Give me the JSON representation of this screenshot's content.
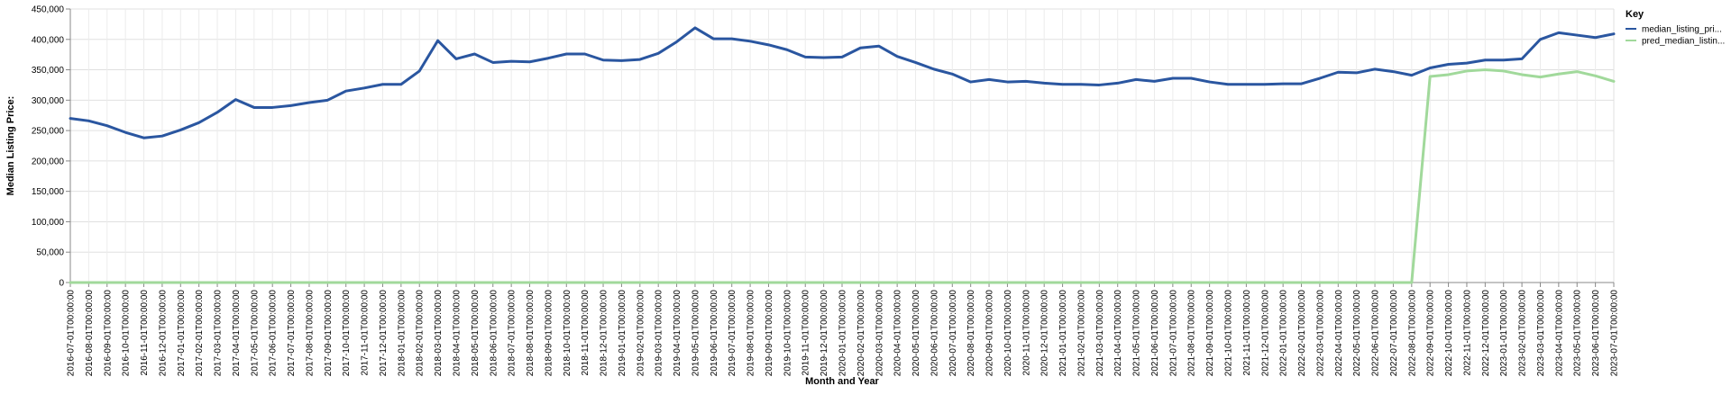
{
  "chart_data": {
    "type": "line",
    "xlabel": "Month and Year",
    "ylabel": "Median Listing Price:",
    "ylim": [
      0,
      450000
    ],
    "yticks": [
      "0",
      "50,000",
      "100,000",
      "150,000",
      "200,000",
      "250,000",
      "300,000",
      "350,000",
      "400,000",
      "450,000"
    ],
    "grid": true,
    "legend": {
      "title": "Key",
      "placement": "top-right"
    },
    "x": [
      "2016-07-01T00:00:00",
      "2016-08-01T00:00:00",
      "2016-09-01T00:00:00",
      "2016-10-01T00:00:00",
      "2016-11-01T00:00:00",
      "2016-12-01T00:00:00",
      "2017-01-01T00:00:00",
      "2017-02-01T00:00:00",
      "2017-03-01T00:00:00",
      "2017-04-01T00:00:00",
      "2017-05-01T00:00:00",
      "2017-06-01T00:00:00",
      "2017-07-01T00:00:00",
      "2017-08-01T00:00:00",
      "2017-09-01T00:00:00",
      "2017-10-01T00:00:00",
      "2017-11-01T00:00:00",
      "2017-12-01T00:00:00",
      "2018-01-01T00:00:00",
      "2018-02-01T00:00:00",
      "2018-03-01T00:00:00",
      "2018-04-01T00:00:00",
      "2018-05-01T00:00:00",
      "2018-06-01T00:00:00",
      "2018-07-01T00:00:00",
      "2018-08-01T00:00:00",
      "2018-09-01T00:00:00",
      "2018-10-01T00:00:00",
      "2018-11-01T00:00:00",
      "2018-12-01T00:00:00",
      "2019-01-01T00:00:00",
      "2019-02-01T00:00:00",
      "2019-03-01T00:00:00",
      "2019-04-01T00:00:00",
      "2019-05-01T00:00:00",
      "2019-06-01T00:00:00",
      "2019-07-01T00:00:00",
      "2019-08-01T00:00:00",
      "2019-09-01T00:00:00",
      "2019-10-01T00:00:00",
      "2019-11-01T00:00:00",
      "2019-12-01T00:00:00",
      "2020-01-01T00:00:00",
      "2020-02-01T00:00:00",
      "2020-03-01T00:00:00",
      "2020-04-01T00:00:00",
      "2020-05-01T00:00:00",
      "2020-06-01T00:00:00",
      "2020-07-01T00:00:00",
      "2020-08-01T00:00:00",
      "2020-09-01T00:00:00",
      "2020-10-01T00:00:00",
      "2020-11-01T00:00:00",
      "2020-12-01T00:00:00",
      "2021-01-01T00:00:00",
      "2021-02-01T00:00:00",
      "2021-03-01T00:00:00",
      "2021-04-01T00:00:00",
      "2021-05-01T00:00:00",
      "2021-06-01T00:00:00",
      "2021-07-01T00:00:00",
      "2021-08-01T00:00:00",
      "2021-09-01T00:00:00",
      "2021-10-01T00:00:00",
      "2021-11-01T00:00:00",
      "2021-12-01T00:00:00",
      "2022-01-01T00:00:00",
      "2022-02-01T00:00:00",
      "2022-03-01T00:00:00",
      "2022-04-01T00:00:00",
      "2022-05-01T00:00:00",
      "2022-06-01T00:00:00",
      "2022-07-01T00:00:00",
      "2022-08-01T00:00:00",
      "2022-09-01T00:00:00",
      "2022-10-01T00:00:00",
      "2022-11-01T00:00:00",
      "2022-12-01T00:00:00",
      "2023-01-01T00:00:00",
      "2023-02-01T00:00:00",
      "2023-03-01T00:00:00",
      "2023-04-01T00:00:00",
      "2023-05-01T00:00:00",
      "2023-06-01T00:00:00",
      "2023-07-01T00:00:00"
    ],
    "series": [
      {
        "name": "median_listing_pri...",
        "color": "#2a56a0",
        "values": [
          270000,
          266000,
          258000,
          247000,
          238000,
          241000,
          251000,
          263000,
          280000,
          301000,
          288000,
          288000,
          291000,
          296000,
          300000,
          315000,
          320000,
          326000,
          326000,
          348000,
          398000,
          368000,
          376000,
          362000,
          364000,
          363000,
          369000,
          376000,
          376000,
          366000,
          365000,
          367000,
          377000,
          396000,
          419000,
          401000,
          401000,
          397000,
          391000,
          383000,
          371000,
          370000,
          371000,
          386000,
          389000,
          372000,
          362000,
          351000,
          343000,
          330000,
          334000,
          330000,
          331000,
          328000,
          326000,
          326000,
          325000,
          328000,
          334000,
          331000,
          336000,
          336000,
          330000,
          326000,
          326000,
          326000,
          327000,
          327000,
          336000,
          346000,
          345000,
          351000,
          347000,
          341000,
          353000,
          359000,
          361000,
          366000,
          366000,
          368000,
          400000,
          411000,
          407000,
          403000,
          409000
        ]
      },
      {
        "name": "pred_median_listin...",
        "color": "#a1d99b",
        "values": [
          0,
          0,
          0,
          0,
          0,
          0,
          0,
          0,
          0,
          0,
          0,
          0,
          0,
          0,
          0,
          0,
          0,
          0,
          0,
          0,
          0,
          0,
          0,
          0,
          0,
          0,
          0,
          0,
          0,
          0,
          0,
          0,
          0,
          0,
          0,
          0,
          0,
          0,
          0,
          0,
          0,
          0,
          0,
          0,
          0,
          0,
          0,
          0,
          0,
          0,
          0,
          0,
          0,
          0,
          0,
          0,
          0,
          0,
          0,
          0,
          0,
          0,
          0,
          0,
          0,
          0,
          0,
          0,
          0,
          0,
          0,
          0,
          0,
          0,
          339000,
          342000,
          348000,
          350000,
          348000,
          342000,
          338000,
          343000,
          347000,
          340000,
          331000
        ]
      }
    ]
  }
}
